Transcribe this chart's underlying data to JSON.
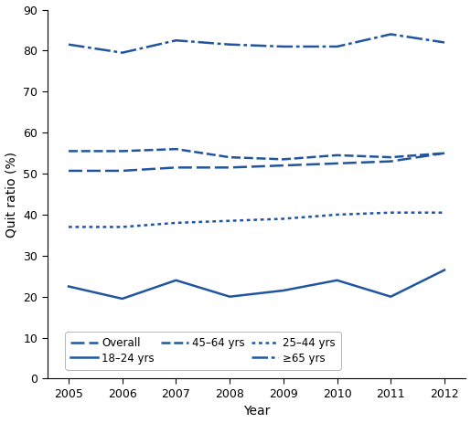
{
  "years": [
    2005,
    2006,
    2007,
    2008,
    2009,
    2010,
    2011,
    2012
  ],
  "overall": [
    50.7,
    50.7,
    51.5,
    51.5,
    52.0,
    52.5,
    53.0,
    55.0
  ],
  "age_18_24": [
    22.5,
    19.5,
    24.0,
    20.0,
    21.5,
    24.0,
    20.0,
    26.5
  ],
  "age_25_44": [
    37.0,
    37.0,
    38.0,
    38.5,
    39.0,
    40.0,
    40.5,
    40.5
  ],
  "age_45_64": [
    55.5,
    55.5,
    56.0,
    54.0,
    53.5,
    54.5,
    54.0,
    55.0
  ],
  "age_65plus": [
    81.5,
    79.5,
    82.5,
    81.5,
    81.0,
    81.0,
    84.0,
    82.0
  ],
  "color": "#2155A0",
  "ylabel": "Quit ratio (%)",
  "xlabel": "Year",
  "ylim": [
    0,
    90
  ],
  "yticks": [
    0,
    10,
    20,
    30,
    40,
    50,
    60,
    70,
    80,
    90
  ],
  "background_color": "#ffffff",
  "legend_labels": [
    "Overall",
    "18–24 yrs",
    "45–64 yrs",
    "25–44 yrs",
    "≥65 yrs"
  ],
  "figsize": [
    5.15,
    4.63
  ],
  "dpi": 100
}
